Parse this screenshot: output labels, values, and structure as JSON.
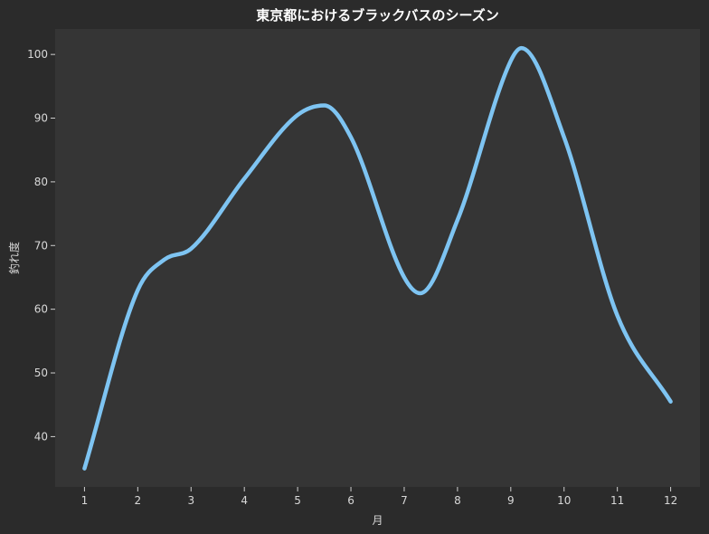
{
  "chart_data": {
    "type": "line",
    "title": "東京都におけるブラックバスのシーズン",
    "xlabel": "月",
    "ylabel": "釣れ度",
    "x": [
      1,
      2,
      2.5,
      3,
      4,
      5,
      5.5,
      6,
      7,
      7.3,
      8,
      9,
      9.2,
      10,
      11,
      12
    ],
    "series": [
      {
        "values": [
          35,
          63,
          67.8,
          69.5,
          80.5,
          90.5,
          92,
          87,
          65,
          62.5,
          74,
          99,
          101,
          87,
          59,
          45.5
        ]
      }
    ],
    "xticks": [
      1,
      2,
      3,
      4,
      5,
      6,
      7,
      8,
      9,
      10,
      11,
      12
    ],
    "yticks": [
      40,
      50,
      60,
      70,
      80,
      90,
      100
    ],
    "xlim": [
      0.45,
      12.55
    ],
    "ylim": [
      32.1,
      104
    ],
    "grid": false,
    "colors": {
      "background": "#2b2b2b",
      "plot_area": "#353535",
      "line": "#7ec4f2"
    }
  }
}
